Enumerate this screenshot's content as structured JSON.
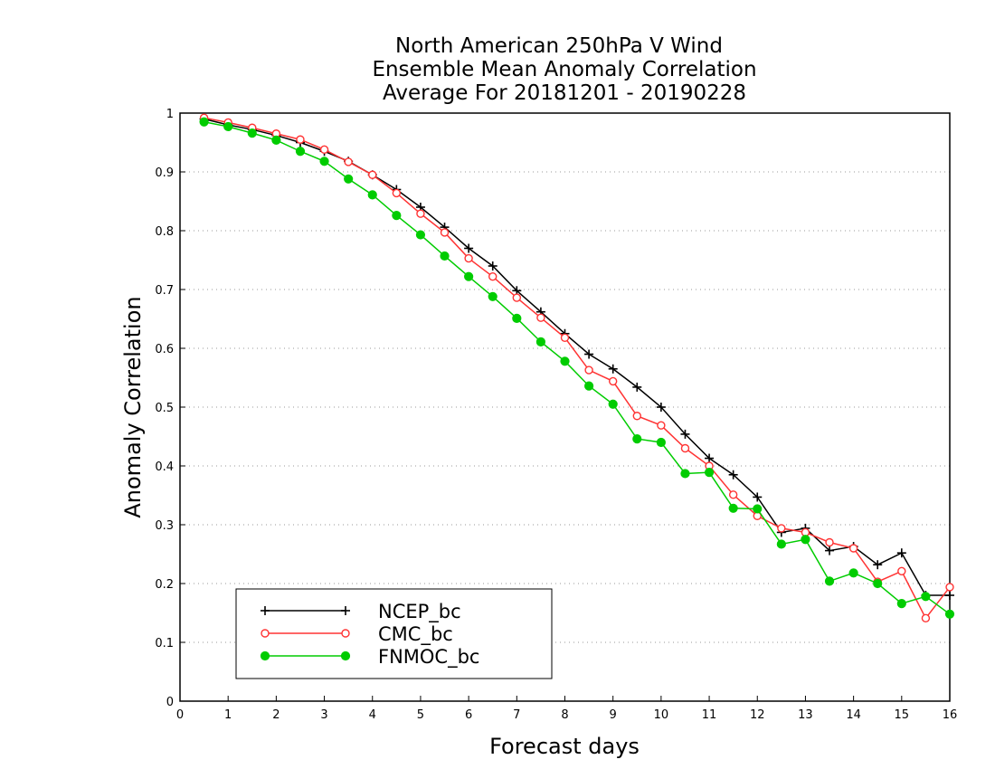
{
  "chart_data": {
    "type": "line",
    "title_lines": [
      "North American 250hPa V Wind",
      "Ensemble Mean Anomaly Correlation",
      "Average For 20181201 - 20190228"
    ],
    "xlabel": "Forecast days",
    "ylabel": "Anomaly Correlation",
    "xlim": [
      0,
      16
    ],
    "ylim": [
      0,
      1
    ],
    "xticks": [
      0,
      1,
      2,
      3,
      4,
      5,
      6,
      7,
      8,
      9,
      10,
      11,
      12,
      13,
      14,
      15,
      16
    ],
    "yticks": [
      0,
      0.1,
      0.2,
      0.3,
      0.4,
      0.5,
      0.6,
      0.7,
      0.8,
      0.9,
      1
    ],
    "ytick_labels": [
      "0",
      "0.1",
      "0.2",
      "0.3",
      "0.4",
      "0.5",
      "0.6",
      "0.7",
      "0.8",
      "0.9",
      "1"
    ],
    "grid": "horizontal dotted",
    "legend_position": "lower-left",
    "x": [
      0.5,
      1,
      1.5,
      2,
      2.5,
      3,
      3.5,
      4,
      4.5,
      5,
      5.5,
      6,
      6.5,
      7,
      7.5,
      8,
      8.5,
      9,
      9.5,
      10,
      10.5,
      11,
      11.5,
      12,
      12.5,
      13,
      13.5,
      14,
      14.5,
      15,
      15.5,
      16
    ],
    "series": [
      {
        "name": "NCEP_bc",
        "color": "#000000",
        "marker": "plus",
        "values": [
          0.99,
          0.98,
          0.972,
          0.962,
          0.95,
          0.935,
          0.918,
          0.895,
          0.87,
          0.84,
          0.806,
          0.77,
          0.74,
          0.698,
          0.662,
          0.625,
          0.59,
          0.565,
          0.534,
          0.5,
          0.454,
          0.413,
          0.385,
          0.347,
          0.287,
          0.294,
          0.256,
          0.263,
          0.232,
          0.252,
          0.18,
          0.18
        ]
      },
      {
        "name": "CMC_bc",
        "color": "#ff3333",
        "marker": "open-circle",
        "values": [
          0.992,
          0.984,
          0.975,
          0.965,
          0.955,
          0.938,
          0.917,
          0.895,
          0.864,
          0.829,
          0.797,
          0.753,
          0.722,
          0.686,
          0.652,
          0.618,
          0.563,
          0.544,
          0.485,
          0.469,
          0.43,
          0.4,
          0.351,
          0.315,
          0.294,
          0.287,
          0.27,
          0.26,
          0.203,
          0.221,
          0.141,
          0.194
        ]
      },
      {
        "name": "FNMOC_bc",
        "color": "#00cc00",
        "marker": "filled-circle",
        "values": [
          0.985,
          0.977,
          0.966,
          0.954,
          0.935,
          0.918,
          0.888,
          0.861,
          0.826,
          0.793,
          0.757,
          0.722,
          0.688,
          0.651,
          0.611,
          0.578,
          0.536,
          0.505,
          0.446,
          0.44,
          0.387,
          0.389,
          0.328,
          0.327,
          0.267,
          0.275,
          0.204,
          0.218,
          0.2,
          0.166,
          0.178,
          0.148
        ]
      }
    ]
  }
}
